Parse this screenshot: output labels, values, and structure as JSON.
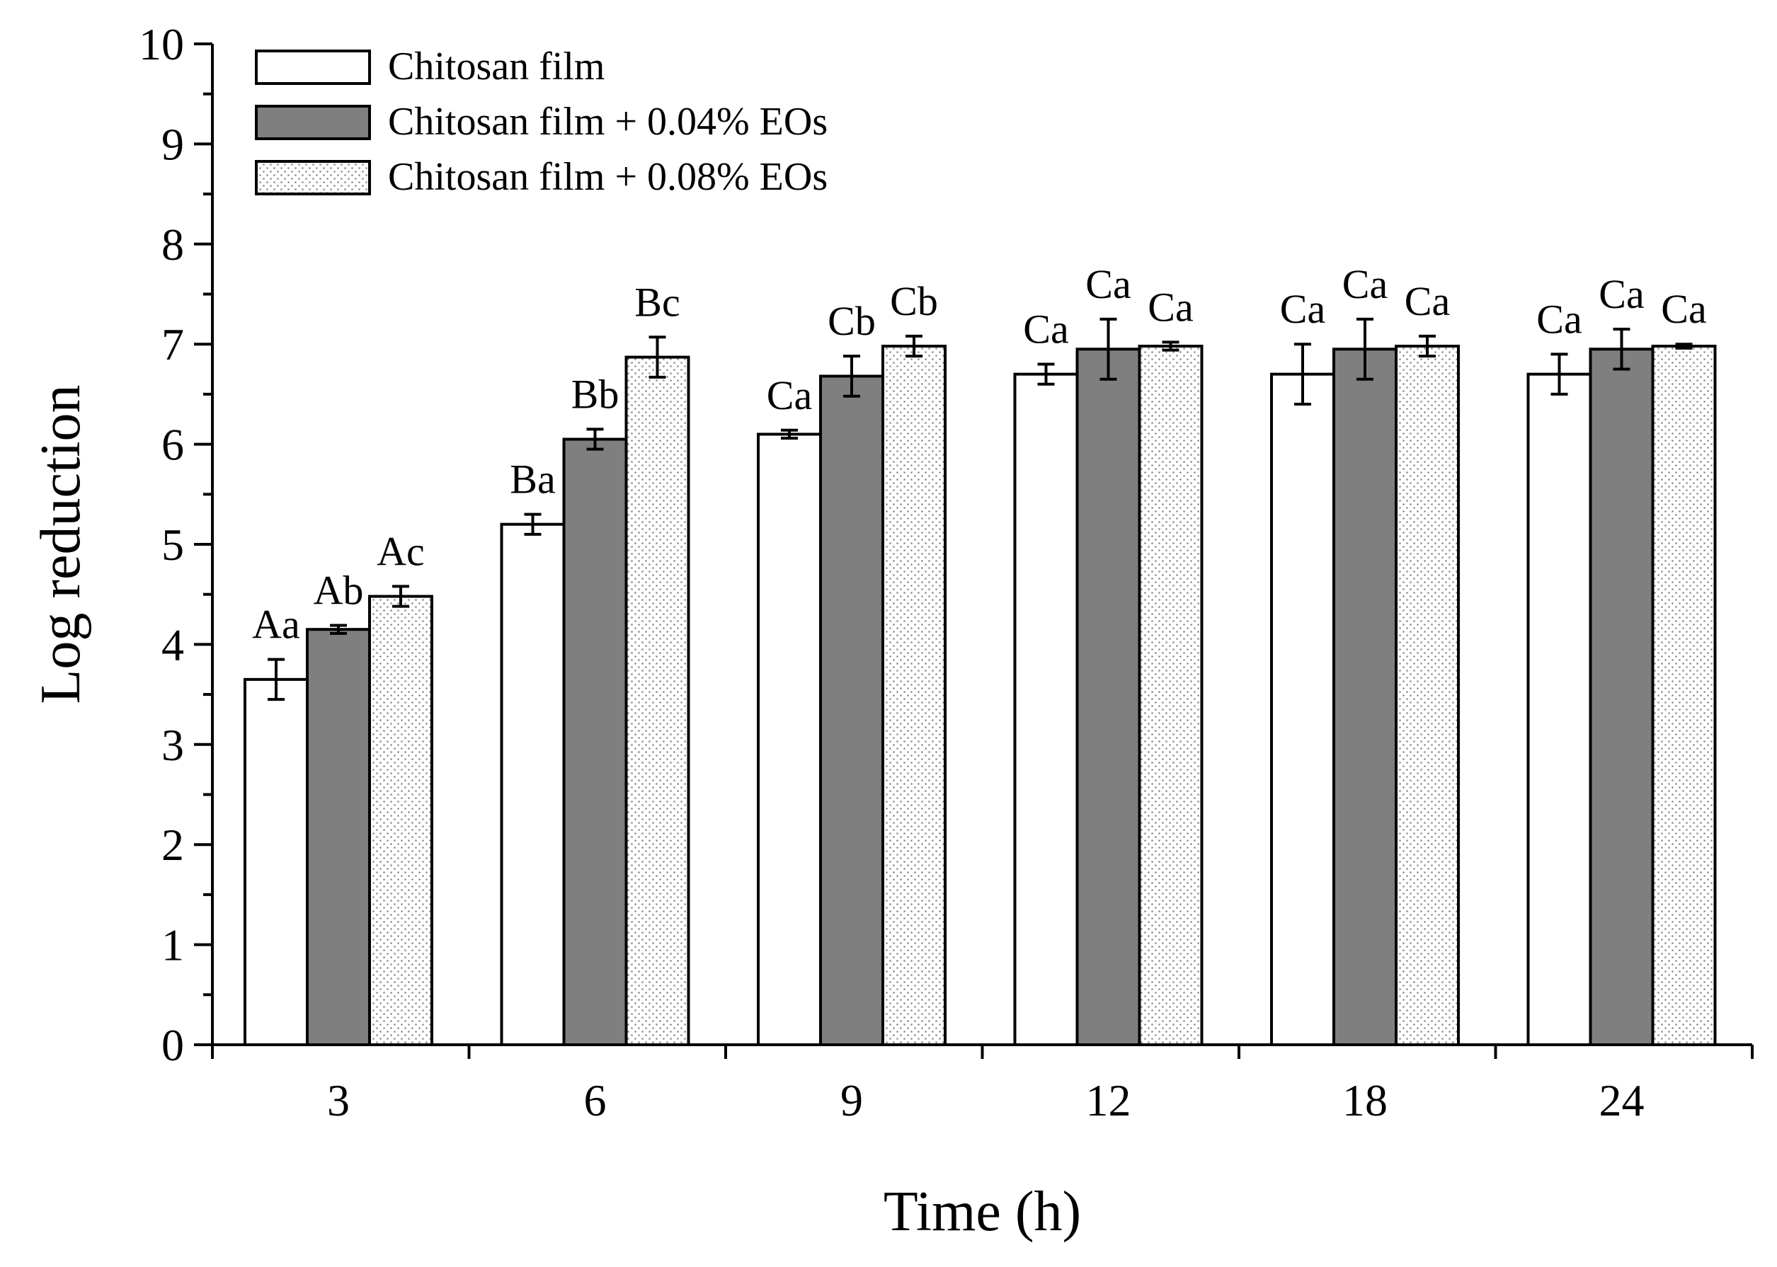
{
  "chart_data": {
    "type": "bar",
    "title": "",
    "xlabel": "Time (h)",
    "ylabel": "Log reduction",
    "ylim": [
      0,
      10
    ],
    "yticks": [
      "0",
      "1",
      "2",
      "3",
      "4",
      "5",
      "6",
      "7",
      "8",
      "9",
      "10"
    ],
    "categories": [
      "3",
      "6",
      "9",
      "12",
      "18",
      "24"
    ],
    "legend_position": "top-left",
    "series": [
      {
        "name": "Chitosan film",
        "fill": "#ffffff",
        "pattern": "none",
        "values": [
          3.65,
          5.2,
          6.1,
          6.7,
          6.7,
          6.7
        ],
        "errors": [
          0.2,
          0.1,
          0.04,
          0.1,
          0.3,
          0.2
        ],
        "labels": [
          "Aa",
          "Ba",
          "Ca",
          "Ca",
          "Ca",
          "Ca"
        ]
      },
      {
        "name": "Chitosan film + 0.04% EOs",
        "fill": "#7f7f7f",
        "pattern": "none",
        "values": [
          4.15,
          6.05,
          6.68,
          6.95,
          6.95,
          6.95
        ],
        "errors": [
          0.04,
          0.1,
          0.2,
          0.3,
          0.3,
          0.2
        ],
        "labels": [
          "Ab",
          "Bb",
          "Cb",
          "Ca",
          "Ca",
          "Ca"
        ]
      },
      {
        "name": "Chitosan film + 0.08% EOs",
        "fill": "#ffffff",
        "pattern": "dots",
        "values": [
          4.48,
          6.87,
          6.98,
          6.98,
          6.98,
          6.98
        ],
        "errors": [
          0.1,
          0.2,
          0.1,
          0.04,
          0.1,
          0.02
        ],
        "labels": [
          "Ac",
          "Bc",
          "Cb",
          "Ca",
          "Ca",
          "Ca"
        ]
      }
    ]
  }
}
